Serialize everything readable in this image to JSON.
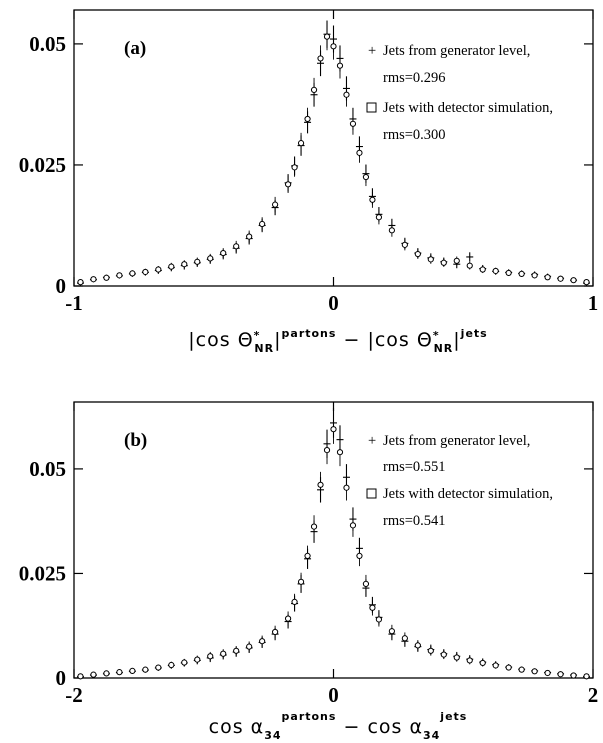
{
  "chart_data": [
    {
      "type": "scatter",
      "panel_label": "(a)",
      "xlim": [
        -1,
        1
      ],
      "ylim": [
        0,
        0.057
      ],
      "x_ticks": [
        {
          "value": -1,
          "label": "-1"
        },
        {
          "value": 0,
          "label": "0"
        },
        {
          "value": 1,
          "label": "1"
        }
      ],
      "y_ticks": [
        {
          "value": 0,
          "label": "0"
        },
        {
          "value": 0.025,
          "label": "0.025"
        },
        {
          "value": 0.05,
          "label": "0.05"
        }
      ],
      "xlabel": {
        "part1_main": "|cos Θ",
        "part1_sup": "*",
        "part1_sub": "NR",
        "part1_close": "|",
        "part1_tag": "partons",
        "minus": " − ",
        "part2_main": "|cos Θ",
        "part2_sup": "*",
        "part2_sub": "NR",
        "part2_close": "|",
        "part2_tag": "jets"
      },
      "series": [
        {
          "name": "Jets from generator level,",
          "stat": "rms=0.296",
          "marker": "+",
          "points": [
            [
              -0.975,
              0.0006
            ],
            [
              -0.925,
              0.0013
            ],
            [
              -0.875,
              0.0018
            ],
            [
              -0.825,
              0.0021
            ],
            [
              -0.775,
              0.0025
            ],
            [
              -0.725,
              0.0028
            ],
            [
              -0.675,
              0.0032
            ],
            [
              -0.625,
              0.0038
            ],
            [
              -0.575,
              0.0042
            ],
            [
              -0.525,
              0.0048
            ],
            [
              -0.475,
              0.0055
            ],
            [
              -0.425,
              0.0065
            ],
            [
              -0.375,
              0.0078
            ],
            [
              -0.325,
              0.0098
            ],
            [
              -0.275,
              0.0125
            ],
            [
              -0.225,
              0.0162
            ],
            [
              -0.175,
              0.0213
            ],
            [
              -0.15,
              0.0248
            ],
            [
              -0.125,
              0.029
            ],
            [
              -0.1,
              0.0338
            ],
            [
              -0.075,
              0.0395
            ],
            [
              -0.05,
              0.046
            ],
            [
              -0.025,
              0.052
            ],
            [
              0,
              0.051
            ],
            [
              0.025,
              0.047
            ],
            [
              0.05,
              0.0408
            ],
            [
              0.075,
              0.0345
            ],
            [
              0.1,
              0.0288
            ],
            [
              0.125,
              0.0232
            ],
            [
              0.15,
              0.0185
            ],
            [
              0.175,
              0.0148
            ],
            [
              0.225,
              0.0125
            ],
            [
              0.275,
              0.0088
            ],
            [
              0.325,
              0.0068
            ],
            [
              0.375,
              0.0058
            ],
            [
              0.425,
              0.005
            ],
            [
              0.475,
              0.0045
            ],
            [
              0.525,
              0.006
            ],
            [
              0.575,
              0.0036
            ],
            [
              0.625,
              0.003
            ],
            [
              0.675,
              0.0028
            ],
            [
              0.725,
              0.0026
            ],
            [
              0.775,
              0.0024
            ],
            [
              0.825,
              0.002
            ],
            [
              0.875,
              0.0016
            ],
            [
              0.925,
              0.0012
            ],
            [
              0.975,
              0.0006
            ]
          ]
        },
        {
          "name": "Jets with detector simulation,",
          "stat": "rms=0.300",
          "marker": "o",
          "points": [
            [
              -0.975,
              0.0008
            ],
            [
              -0.925,
              0.0014
            ],
            [
              -0.875,
              0.0017
            ],
            [
              -0.825,
              0.0022
            ],
            [
              -0.775,
              0.0026
            ],
            [
              -0.725,
              0.0029
            ],
            [
              -0.675,
              0.0034
            ],
            [
              -0.625,
              0.004
            ],
            [
              -0.575,
              0.0045
            ],
            [
              -0.525,
              0.005
            ],
            [
              -0.475,
              0.0057
            ],
            [
              -0.425,
              0.0068
            ],
            [
              -0.375,
              0.0082
            ],
            [
              -0.325,
              0.0102
            ],
            [
              -0.275,
              0.0128
            ],
            [
              -0.225,
              0.0168
            ],
            [
              -0.175,
              0.021
            ],
            [
              -0.15,
              0.0245
            ],
            [
              -0.125,
              0.0295
            ],
            [
              -0.1,
              0.0345
            ],
            [
              -0.075,
              0.0405
            ],
            [
              -0.05,
              0.047
            ],
            [
              -0.025,
              0.0515
            ],
            [
              0,
              0.0495
            ],
            [
              0.025,
              0.0455
            ],
            [
              0.05,
              0.0395
            ],
            [
              0.075,
              0.0335
            ],
            [
              0.1,
              0.0275
            ],
            [
              0.125,
              0.0225
            ],
            [
              0.15,
              0.0178
            ],
            [
              0.175,
              0.0142
            ],
            [
              0.225,
              0.0115
            ],
            [
              0.275,
              0.0085
            ],
            [
              0.325,
              0.0066
            ],
            [
              0.375,
              0.0055
            ],
            [
              0.425,
              0.0048
            ],
            [
              0.475,
              0.0052
            ],
            [
              0.525,
              0.0042
            ],
            [
              0.575,
              0.0034
            ],
            [
              0.625,
              0.0031
            ],
            [
              0.675,
              0.0027
            ],
            [
              0.725,
              0.0025
            ],
            [
              0.775,
              0.0022
            ],
            [
              0.825,
              0.0018
            ],
            [
              0.875,
              0.0015
            ],
            [
              0.925,
              0.0012
            ],
            [
              0.975,
              0.0008
            ]
          ]
        }
      ]
    },
    {
      "type": "scatter",
      "panel_label": "(b)",
      "xlim": [
        -2,
        2
      ],
      "ylim": [
        0,
        0.066
      ],
      "x_ticks": [
        {
          "value": -2,
          "label": "-2"
        },
        {
          "value": 0,
          "label": "0"
        },
        {
          "value": 2,
          "label": "2"
        }
      ],
      "y_ticks": [
        {
          "value": 0,
          "label": "0"
        },
        {
          "value": 0.025,
          "label": "0.025"
        },
        {
          "value": 0.05,
          "label": "0.05"
        }
      ],
      "xlabel": {
        "part1_main": "cos α",
        "part1_sub": "34",
        "part1_tag": "partons",
        "minus": " − ",
        "part2_main": "cos α",
        "part2_sub": "34",
        "part2_tag": "jets"
      },
      "series": [
        {
          "name": "Jets from generator level,",
          "stat": "rms=0.551",
          "marker": "+",
          "points": [
            [
              -1.95,
              0.0003
            ],
            [
              -1.85,
              0.0007
            ],
            [
              -1.75,
              0.001
            ],
            [
              -1.65,
              0.0013
            ],
            [
              -1.55,
              0.0016
            ],
            [
              -1.45,
              0.0019
            ],
            [
              -1.35,
              0.0024
            ],
            [
              -1.25,
              0.003
            ],
            [
              -1.15,
              0.0036
            ],
            [
              -1.05,
              0.0042
            ],
            [
              -0.95,
              0.0048
            ],
            [
              -0.85,
              0.0055
            ],
            [
              -0.75,
              0.0062
            ],
            [
              -0.65,
              0.0072
            ],
            [
              -0.55,
              0.0085
            ],
            [
              -0.45,
              0.0105
            ],
            [
              -0.35,
              0.0135
            ],
            [
              -0.3,
              0.0178
            ],
            [
              -0.25,
              0.0225
            ],
            [
              -0.2,
              0.0285
            ],
            [
              -0.15,
              0.035
            ],
            [
              -0.1,
              0.045
            ],
            [
              -0.05,
              0.056
            ],
            [
              0,
              0.061
            ],
            [
              0.05,
              0.057
            ],
            [
              0.1,
              0.048
            ],
            [
              0.15,
              0.038
            ],
            [
              0.2,
              0.031
            ],
            [
              0.25,
              0.0215
            ],
            [
              0.3,
              0.0175
            ],
            [
              0.35,
              0.0145
            ],
            [
              0.45,
              0.0105
            ],
            [
              0.55,
              0.0088
            ],
            [
              0.65,
              0.0075
            ],
            [
              0.75,
              0.0068
            ],
            [
              0.85,
              0.0058
            ],
            [
              0.95,
              0.0052
            ],
            [
              1.05,
              0.0045
            ],
            [
              1.15,
              0.0038
            ],
            [
              1.25,
              0.0032
            ],
            [
              1.35,
              0.0026
            ],
            [
              1.45,
              0.0021
            ],
            [
              1.55,
              0.0017
            ],
            [
              1.65,
              0.0013
            ],
            [
              1.75,
              0.001
            ],
            [
              1.85,
              0.0007
            ],
            [
              1.95,
              0.0003
            ]
          ]
        },
        {
          "name": "Jets with detector simulation,",
          "stat": "rms=0.541",
          "marker": "o",
          "points": [
            [
              -1.95,
              0.0004
            ],
            [
              -1.85,
              0.0008
            ],
            [
              -1.75,
              0.0011
            ],
            [
              -1.65,
              0.0014
            ],
            [
              -1.55,
              0.0017
            ],
            [
              -1.45,
              0.002
            ],
            [
              -1.35,
              0.0025
            ],
            [
              -1.25,
              0.0031
            ],
            [
              -1.15,
              0.0037
            ],
            [
              -1.05,
              0.0044
            ],
            [
              -0.95,
              0.0052
            ],
            [
              -0.85,
              0.0058
            ],
            [
              -0.75,
              0.0065
            ],
            [
              -0.65,
              0.0075
            ],
            [
              -0.55,
              0.0088
            ],
            [
              -0.45,
              0.011
            ],
            [
              -0.35,
              0.0142
            ],
            [
              -0.3,
              0.0182
            ],
            [
              -0.25,
              0.023
            ],
            [
              -0.2,
              0.0292
            ],
            [
              -0.15,
              0.0362
            ],
            [
              -0.1,
              0.0462
            ],
            [
              -0.05,
              0.0545
            ],
            [
              0,
              0.0595
            ],
            [
              0.05,
              0.054
            ],
            [
              0.1,
              0.0455
            ],
            [
              0.15,
              0.0365
            ],
            [
              0.2,
              0.0292
            ],
            [
              0.25,
              0.0225
            ],
            [
              0.3,
              0.0168
            ],
            [
              0.35,
              0.014
            ],
            [
              0.45,
              0.0112
            ],
            [
              0.55,
              0.0095
            ],
            [
              0.65,
              0.0078
            ],
            [
              0.75,
              0.0065
            ],
            [
              0.85,
              0.0056
            ],
            [
              0.95,
              0.0049
            ],
            [
              1.05,
              0.0042
            ],
            [
              1.15,
              0.0036
            ],
            [
              1.25,
              0.003
            ],
            [
              1.35,
              0.0025
            ],
            [
              1.45,
              0.002
            ],
            [
              1.55,
              0.0016
            ],
            [
              1.65,
              0.0012
            ],
            [
              1.75,
              0.0009
            ],
            [
              1.85,
              0.0006
            ],
            [
              1.95,
              0.0004
            ]
          ]
        }
      ]
    }
  ]
}
